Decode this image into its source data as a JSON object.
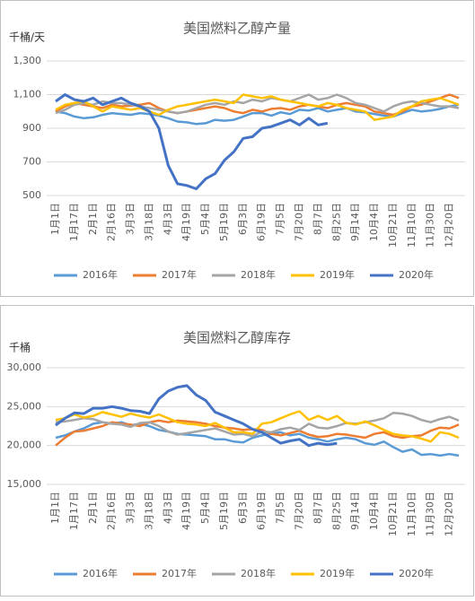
{
  "chart_data": [
    {
      "type": "line",
      "title": "美国燃料乙醇产量",
      "y_label": "千桶/天",
      "categories": [
        "1月1日",
        null,
        "1月17日",
        null,
        "2月1日",
        null,
        "2月16日",
        null,
        "3月3日",
        null,
        "3月18日",
        null,
        "4月3日",
        null,
        "4月19日",
        null,
        "5月4日",
        null,
        "5月19日",
        null,
        "6月3日",
        null,
        "6月19日",
        null,
        "7月5日",
        null,
        "7月20日",
        null,
        "8月7日",
        null,
        "8月25日",
        null,
        "9月14日",
        null,
        "10月4日",
        null,
        "10月21日",
        null,
        "11月10日",
        null,
        "11月30日",
        null,
        "12月20日",
        null
      ],
      "ylim": [
        500,
        1300
      ],
      "yticks": [
        500,
        700,
        900,
        {
          "value": 1100,
          "label": "1,100"
        },
        {
          "value": 1300,
          "label": "1,300"
        }
      ],
      "grid": true,
      "series": [
        {
          "name": "2016年",
          "color": "#5b9bd5",
          "values": [
            1000,
            990,
            970,
            960,
            965,
            980,
            990,
            985,
            980,
            990,
            985,
            975,
            960,
            940,
            935,
            925,
            930,
            950,
            945,
            950,
            970,
            990,
            990,
            975,
            995,
            985,
            1010,
            1005,
            1020,
            1000,
            1010,
            1020,
            1000,
            995,
            985,
            975,
            970,
            990,
            1010,
            1000,
            1005,
            1015,
            1030,
            1040
          ]
        },
        {
          "name": "2017年",
          "color": "#ed7d31",
          "values": [
            1000,
            1030,
            1050,
            1040,
            1030,
            1020,
            1040,
            1030,
            1035,
            1040,
            1050,
            1020,
            1000,
            990,
            1000,
            1010,
            1020,
            1030,
            1020,
            1000,
            990,
            1010,
            1000,
            1015,
            1020,
            1010,
            1030,
            1040,
            1030,
            1020,
            1040,
            1050,
            1040,
            1030,
            1000,
            990,
            980,
            1000,
            1030,
            1040,
            1060,
            1080,
            1100,
            1080
          ]
        },
        {
          "name": "2018年",
          "color": "#a5a5a5",
          "values": [
            990,
            1010,
            1040,
            1050,
            1040,
            1060,
            1050,
            1050,
            1040,
            1030,
            1020,
            1010,
            1000,
            990,
            1000,
            1020,
            1040,
            1050,
            1040,
            1060,
            1050,
            1070,
            1060,
            1080,
            1070,
            1060,
            1080,
            1100,
            1070,
            1080,
            1100,
            1080,
            1050,
            1040,
            1020,
            1000,
            1030,
            1050,
            1060,
            1050,
            1040,
            1030,
            1030,
            1020
          ]
        },
        {
          "name": "2019年",
          "color": "#ffc000",
          "values": [
            1010,
            1040,
            1050,
            1060,
            1030,
            1000,
            1030,
            1020,
            1010,
            1020,
            1000,
            980,
            1010,
            1030,
            1040,
            1050,
            1060,
            1070,
            1060,
            1050,
            1100,
            1090,
            1080,
            1090,
            1070,
            1060,
            1050,
            1040,
            1030,
            1050,
            1040,
            1020,
            1010,
            1000,
            950,
            960,
            970,
            1010,
            1030,
            1060,
            1070,
            1080,
            1060,
            1040
          ]
        },
        {
          "name": "2020年",
          "color": "#4472c4",
          "values": [
            1060,
            1100,
            1070,
            1060,
            1080,
            1040,
            1060,
            1080,
            1050,
            1030,
            1000,
            900,
            680,
            570,
            560,
            540,
            600,
            630,
            710,
            760,
            840,
            850,
            900,
            910,
            930,
            950,
            920,
            960,
            920,
            930,
            null,
            null,
            null,
            null,
            null,
            null,
            null,
            null,
            null,
            null,
            null,
            null,
            null,
            null
          ]
        }
      ]
    },
    {
      "type": "line",
      "title": "美国燃料乙醇库存",
      "y_label": "千桶",
      "categories": [
        "1月1日",
        null,
        "1月17日",
        null,
        "2月1日",
        null,
        "2月16日",
        null,
        "3月3日",
        null,
        "3月18日",
        null,
        "4月3日",
        null,
        "4月19日",
        null,
        "5月4日",
        null,
        "5月19日",
        null,
        "6月3日",
        null,
        "6月19日",
        null,
        "7月5日",
        null,
        "7月20日",
        null,
        "8月7日",
        null,
        "8月25日",
        null,
        "9月14日",
        null,
        "10月4日",
        null,
        "10月21日",
        null,
        "11月10日",
        null,
        "11月30日",
        null,
        "12月20日",
        null
      ],
      "ylim": [
        15000,
        30000
      ],
      "yticks": [
        {
          "value": 15000,
          "label": "15,000"
        },
        {
          "value": 20000,
          "label": "20,000"
        },
        {
          "value": 25000,
          "label": "25,000"
        },
        {
          "value": 30000,
          "label": "30,000"
        }
      ],
      "grid": true,
      "series": [
        {
          "name": "2016年",
          "color": "#5b9bd5",
          "values": [
            21000,
            21300,
            21800,
            22200,
            22800,
            23000,
            22800,
            23000,
            22600,
            22800,
            22500,
            22000,
            21800,
            21500,
            21400,
            21300,
            21200,
            20800,
            20800,
            20500,
            20400,
            21000,
            21300,
            21500,
            21700,
            21300,
            21500,
            21000,
            20800,
            20500,
            20800,
            21000,
            20800,
            20300,
            20100,
            20500,
            19800,
            19200,
            19500,
            18800,
            18900,
            18700,
            18900,
            18700
          ]
        },
        {
          "name": "2017年",
          "color": "#ed7d31",
          "values": [
            20000,
            21000,
            21800,
            21900,
            22200,
            22500,
            23000,
            22800,
            22700,
            22500,
            23000,
            23200,
            23000,
            23200,
            23100,
            23000,
            22800,
            22500,
            22300,
            22200,
            22000,
            22100,
            22000,
            21500,
            21300,
            21600,
            21900,
            21400,
            21100,
            21200,
            21500,
            21400,
            21200,
            21000,
            21500,
            21700,
            21200,
            21000,
            21200,
            21300,
            21900,
            22300,
            22200,
            22700
          ]
        },
        {
          "name": "2018年",
          "color": "#a5a5a5",
          "values": [
            23000,
            23100,
            23300,
            23500,
            23400,
            23000,
            22800,
            22700,
            22400,
            22900,
            23000,
            22500,
            21800,
            21400,
            21600,
            21800,
            22000,
            22200,
            21800,
            21400,
            21500,
            21200,
            21800,
            21700,
            22100,
            22300,
            22000,
            22800,
            22300,
            22200,
            22500,
            22900,
            22800,
            23000,
            23200,
            23500,
            24200,
            24100,
            23800,
            23300,
            23000,
            23400,
            23700,
            23200
          ]
        },
        {
          "name": "2019年",
          "color": "#ffc000",
          "values": [
            23300,
            23500,
            24000,
            23600,
            23800,
            24300,
            24000,
            23700,
            24100,
            23800,
            23600,
            24000,
            23500,
            23000,
            22800,
            22700,
            22500,
            22900,
            22300,
            21700,
            21700,
            21500,
            22800,
            23000,
            23500,
            24000,
            24400,
            23300,
            23800,
            23300,
            23800,
            22900,
            22700,
            23100,
            22600,
            22000,
            21500,
            21300,
            21200,
            20900,
            20500,
            21700,
            21500,
            21000
          ]
        },
        {
          "name": "2020年",
          "color": "#4472c4",
          "values": [
            22600,
            23500,
            24200,
            24100,
            24800,
            24800,
            25000,
            24800,
            24500,
            24400,
            24100,
            26000,
            27000,
            27500,
            27700,
            26500,
            25800,
            24300,
            23800,
            23300,
            22800,
            22100,
            21700,
            21000,
            20300,
            20600,
            20800,
            20000,
            20300,
            20100,
            20300,
            null,
            null,
            null,
            null,
            null,
            null,
            null,
            null,
            null,
            null,
            null,
            null,
            null
          ]
        }
      ]
    }
  ]
}
